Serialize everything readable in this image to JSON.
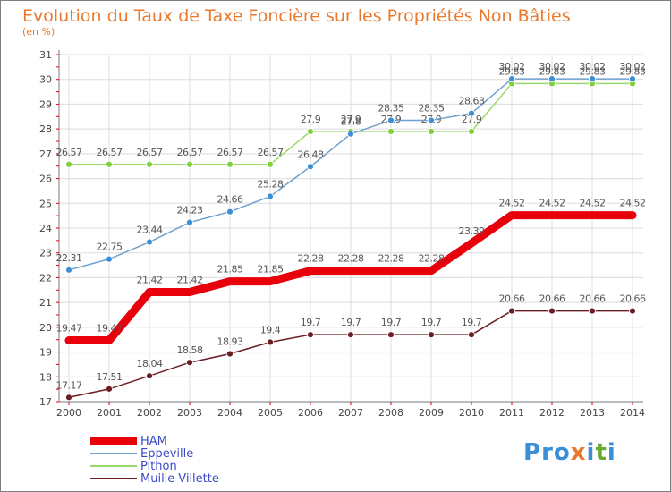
{
  "header": {
    "title": "Evolution du Taux de Taxe Foncière sur les Propriétés Non Bâties",
    "unit": "(en %)"
  },
  "logo": {
    "letters": [
      "P",
      "r",
      "o",
      "x",
      "i",
      "t",
      "i"
    ],
    "colors": [
      "#3b8fd6",
      "#3b8fd6",
      "#3b8fd6",
      "#e8792e",
      "#3b8fd6",
      "#6aab2f",
      "#3b8fd6"
    ]
  },
  "chart_data": {
    "type": "line",
    "title": "Evolution du Taux de Taxe Foncière sur les Propriétés Non Bâties",
    "ylabel": "(en %)",
    "xlabel": "",
    "categories": [
      "2000",
      "2001",
      "2002",
      "2003",
      "2004",
      "2005",
      "2006",
      "2007",
      "2008",
      "2009",
      "2010",
      "2011",
      "2012",
      "2013",
      "2014"
    ],
    "ylim": [
      17,
      31
    ],
    "yticks": [
      "17",
      "18",
      "19",
      "20",
      "21",
      "22",
      "23",
      "24",
      "25",
      "26",
      "27",
      "28",
      "29",
      "30",
      "31"
    ],
    "grid": true,
    "legend_position": "bottom-left",
    "series": [
      {
        "name": "Muille-Villette",
        "color": "#6b1d23",
        "lineColor": "#6b1d23",
        "values": [
          17.17,
          17.51,
          18.04,
          18.58,
          18.93,
          19.4,
          19.7,
          19.7,
          19.7,
          19.7,
          19.7,
          20.66,
          20.66,
          20.66,
          20.66
        ],
        "labels": [
          "17.17",
          "17.51",
          "18.04",
          "18.58",
          "18.93",
          "19.4",
          "19.7",
          "19.7",
          "19.7",
          "19.7",
          "19.7",
          "20.66",
          "20.66",
          "20.66",
          "20.66"
        ]
      },
      {
        "name": "Pithon",
        "color": "#7fd13b",
        "lineColor": "#97d86a",
        "values": [
          26.57,
          26.57,
          26.57,
          26.57,
          26.57,
          26.57,
          27.9,
          27.9,
          27.9,
          27.9,
          27.9,
          29.83,
          29.83,
          29.83,
          29.83
        ],
        "labels": [
          "26.57",
          "26.57",
          "26.57",
          "26.57",
          "26.57",
          "26.57",
          "27.9",
          "27.9",
          "27.9",
          "27.9",
          "27.9",
          "29.83",
          "29.83",
          "29.83",
          "29.83"
        ]
      },
      {
        "name": "Eppeville",
        "color": "#3b8fd6",
        "lineColor": "#6fa0cf",
        "values": [
          22.31,
          22.75,
          23.44,
          24.23,
          24.66,
          25.28,
          26.48,
          27.8,
          28.35,
          28.35,
          28.63,
          30.02,
          30.02,
          30.02,
          30.02
        ],
        "labels": [
          "22.31",
          "22.75",
          "23.44",
          "24.23",
          "24.66",
          "25.28",
          "26.48",
          "27.8",
          "28.35",
          "28.35",
          "28.63",
          "30.02",
          "30.02",
          "30.02",
          "30.02"
        ]
      },
      {
        "name": "HAM",
        "color": "#e8000b",
        "lineColor": "#e8000b",
        "values": [
          19.47,
          19.47,
          21.42,
          21.42,
          21.85,
          21.85,
          22.28,
          22.28,
          22.28,
          22.28,
          23.39,
          24.52,
          24.52,
          24.52,
          24.52
        ],
        "labels": [
          "19.47",
          "19.47",
          "21.42",
          "21.42",
          "21.85",
          "21.85",
          "22.28",
          "22.28",
          "22.28",
          "22.28",
          "23.39",
          "24.52",
          "24.52",
          "24.52",
          "24.52"
        ]
      }
    ],
    "legend": [
      "HAM",
      "Eppeville",
      "Pithon",
      "Muille-Villette"
    ]
  }
}
